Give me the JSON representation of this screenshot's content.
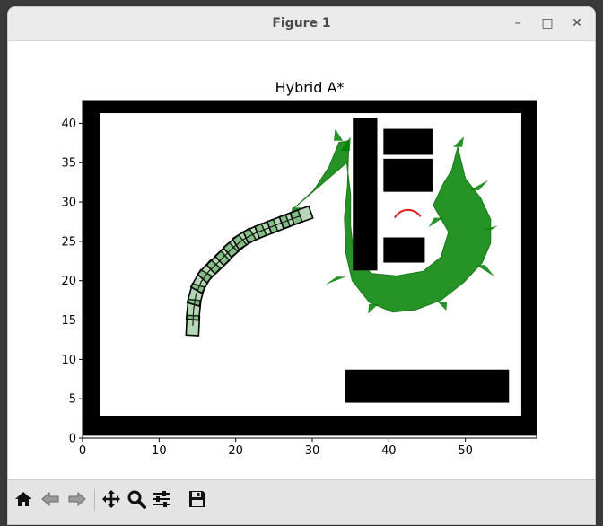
{
  "window": {
    "title": "Figure 1",
    "controls": {
      "minimize": "–",
      "maximize": "□",
      "close": "✕"
    }
  },
  "toolbar": {
    "buttons": [
      {
        "name": "home-button",
        "icon": "home-icon"
      },
      {
        "name": "back-button",
        "icon": "arrow-left-icon"
      },
      {
        "name": "forward-button",
        "icon": "arrow-right-icon"
      },
      {
        "name": "pan-button",
        "icon": "move-icon"
      },
      {
        "name": "zoom-button",
        "icon": "magnifier-icon"
      },
      {
        "name": "configure-subplots-button",
        "icon": "sliders-icon"
      },
      {
        "name": "save-button",
        "icon": "floppy-disk-icon"
      }
    ]
  },
  "chart_data": {
    "type": "scatter",
    "title": "Hybrid A*",
    "xlabel": "",
    "ylabel": "",
    "xlim": [
      0,
      59.3
    ],
    "ylim": [
      0,
      42.9
    ],
    "xticks": [
      0,
      10,
      20,
      30,
      40,
      50
    ],
    "yticks": [
      0,
      5,
      10,
      15,
      20,
      25,
      30,
      35,
      40
    ],
    "grid": false,
    "legend": "none",
    "colors": {
      "obstacle": "#000000",
      "explored": "#008000",
      "path_car": "#000000",
      "goal_arc": "#e02020"
    },
    "boundary": {
      "xmin": 2.3,
      "xmax": 57.3,
      "ymin": 2.8,
      "ymax": 41.3,
      "thickness": 2.5
    },
    "obstacles": [
      {
        "x0": 35.3,
        "y0": 21.3,
        "x1": 38.5,
        "y1": 40.7
      },
      {
        "x0": 39.3,
        "y0": 36.0,
        "x1": 45.7,
        "y1": 39.3
      },
      {
        "x0": 39.3,
        "y0": 31.3,
        "x1": 45.7,
        "y1": 35.5
      },
      {
        "x0": 39.3,
        "y0": 22.3,
        "x1": 44.7,
        "y1": 25.5
      },
      {
        "x0": 34.3,
        "y0": 4.5,
        "x1": 55.7,
        "y1": 8.7
      }
    ],
    "path": [
      {
        "x": 14.4,
        "y": 14.3
      },
      {
        "x": 14.5,
        "y": 16.3
      },
      {
        "x": 14.8,
        "y": 18.2
      },
      {
        "x": 15.5,
        "y": 19.9
      },
      {
        "x": 16.5,
        "y": 21.2
      },
      {
        "x": 17.7,
        "y": 22.3
      },
      {
        "x": 18.8,
        "y": 23.4
      },
      {
        "x": 19.9,
        "y": 24.4
      },
      {
        "x": 21.1,
        "y": 25.3
      },
      {
        "x": 22.5,
        "y": 26.0
      },
      {
        "x": 24.0,
        "y": 26.6
      },
      {
        "x": 25.6,
        "y": 27.2
      },
      {
        "x": 27.2,
        "y": 27.8
      },
      {
        "x": 28.6,
        "y": 28.3
      }
    ],
    "explored_region": {
      "outer": [
        [
          27.6,
          29.2
        ],
        [
          30.2,
          31.5
        ],
        [
          32.2,
          34.5
        ],
        [
          33.5,
          37.6
        ],
        [
          34.8,
          37.8
        ],
        [
          34.6,
          32.0
        ],
        [
          34.2,
          28.0
        ],
        [
          34.4,
          23.5
        ],
        [
          35.2,
          20.0
        ],
        [
          37.5,
          17.2
        ],
        [
          40.5,
          16.0
        ],
        [
          43.5,
          16.3
        ],
        [
          46.8,
          17.5
        ],
        [
          49.8,
          19.8
        ],
        [
          52.2,
          22.3
        ],
        [
          53.3,
          24.8
        ],
        [
          53.3,
          27.8
        ],
        [
          52.0,
          30.5
        ],
        [
          50.0,
          33.0
        ],
        [
          49.0,
          37.0
        ],
        [
          48.2,
          34.0
        ],
        [
          47.2,
          32.5
        ],
        [
          45.8,
          29.6
        ],
        [
          47.8,
          26.2
        ],
        [
          46.8,
          23.0
        ],
        [
          44.5,
          21.2
        ],
        [
          41.0,
          20.6
        ],
        [
          37.8,
          20.9
        ],
        [
          35.5,
          22.8
        ],
        [
          35.0,
          27.0
        ],
        [
          35.0,
          31.0
        ],
        [
          34.5,
          35.0
        ]
      ],
      "inner_blob": [
        [
          29.0,
          26.0
        ],
        [
          31.0,
          23.0
        ],
        [
          32.2,
          21.0
        ],
        [
          31.0,
          19.0
        ],
        [
          29.5,
          21.5
        ]
      ]
    },
    "goal_arc": {
      "cx": 42.5,
      "cy": 27.0,
      "r": 2.0,
      "start_deg": 35,
      "end_deg": 150
    }
  }
}
